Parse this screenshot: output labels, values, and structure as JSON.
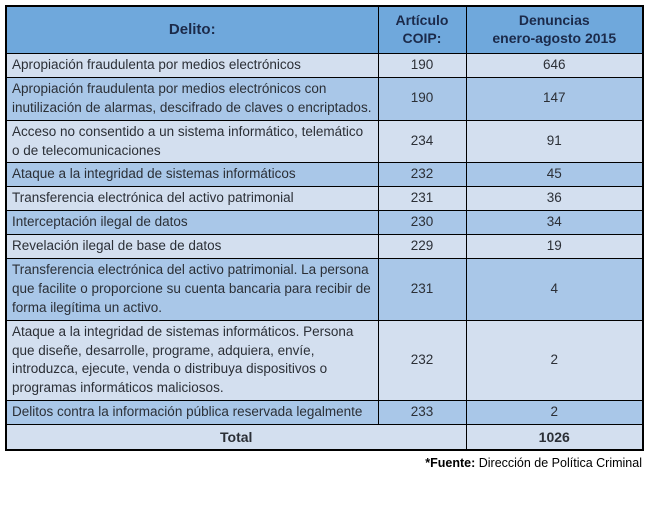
{
  "colors": {
    "header_bg": "#6FA8DC",
    "row_light": "#D3DFEF",
    "row_medium": "#A9C7E8",
    "border": "#000000",
    "body_text": "#2B2F36",
    "header_text": "#1B2A4A"
  },
  "table": {
    "columns": [
      "Delito:",
      "Artículo\nCOIP:",
      "Denuncias\nenero-agosto 2015"
    ],
    "rows": [
      {
        "delito": "Apropiación fraudulenta por medios electrónicos",
        "articulo": "190",
        "denuncias": "646"
      },
      {
        "delito": "Apropiación fraudulenta por medios electrónicos con inutilización de alarmas, descifrado de claves o encriptados.",
        "articulo": "190",
        "denuncias": "147"
      },
      {
        "delito": "Acceso no consentido a un sistema informático, telemático o de telecomunicaciones",
        "articulo": "234",
        "denuncias": "91"
      },
      {
        "delito": "Ataque a la integridad de sistemas informáticos",
        "articulo": "232",
        "denuncias": "45"
      },
      {
        "delito": "Transferencia electrónica del activo patrimonial",
        "articulo": "231",
        "denuncias": "36"
      },
      {
        "delito": "Interceptación ilegal de datos",
        "articulo": "230",
        "denuncias": "34"
      },
      {
        "delito": "Revelación ilegal de base de datos",
        "articulo": "229",
        "denuncias": "19"
      },
      {
        "delito": "Transferencia electrónica del activo patrimonial. La persona que facilite o proporcione su cuenta bancaria para recibir de forma ilegítima un activo.",
        "articulo": "231",
        "denuncias": "4"
      },
      {
        "delito": "Ataque a la integridad de sistemas informáticos. Persona que diseñe, desarrolle, programe, adquiera, envíe, introduzca, ejecute, venda o distribuya dispositivos o programas informáticos maliciosos.",
        "articulo": "232",
        "denuncias": "2"
      },
      {
        "delito": "Delitos contra la información pública reservada legalmente",
        "articulo": "233",
        "denuncias": "2"
      }
    ],
    "total": {
      "label": "Total",
      "denuncias": "1026"
    }
  },
  "footnote": {
    "label": "*Fuente:",
    "text": "Dirección de Política Criminal"
  }
}
